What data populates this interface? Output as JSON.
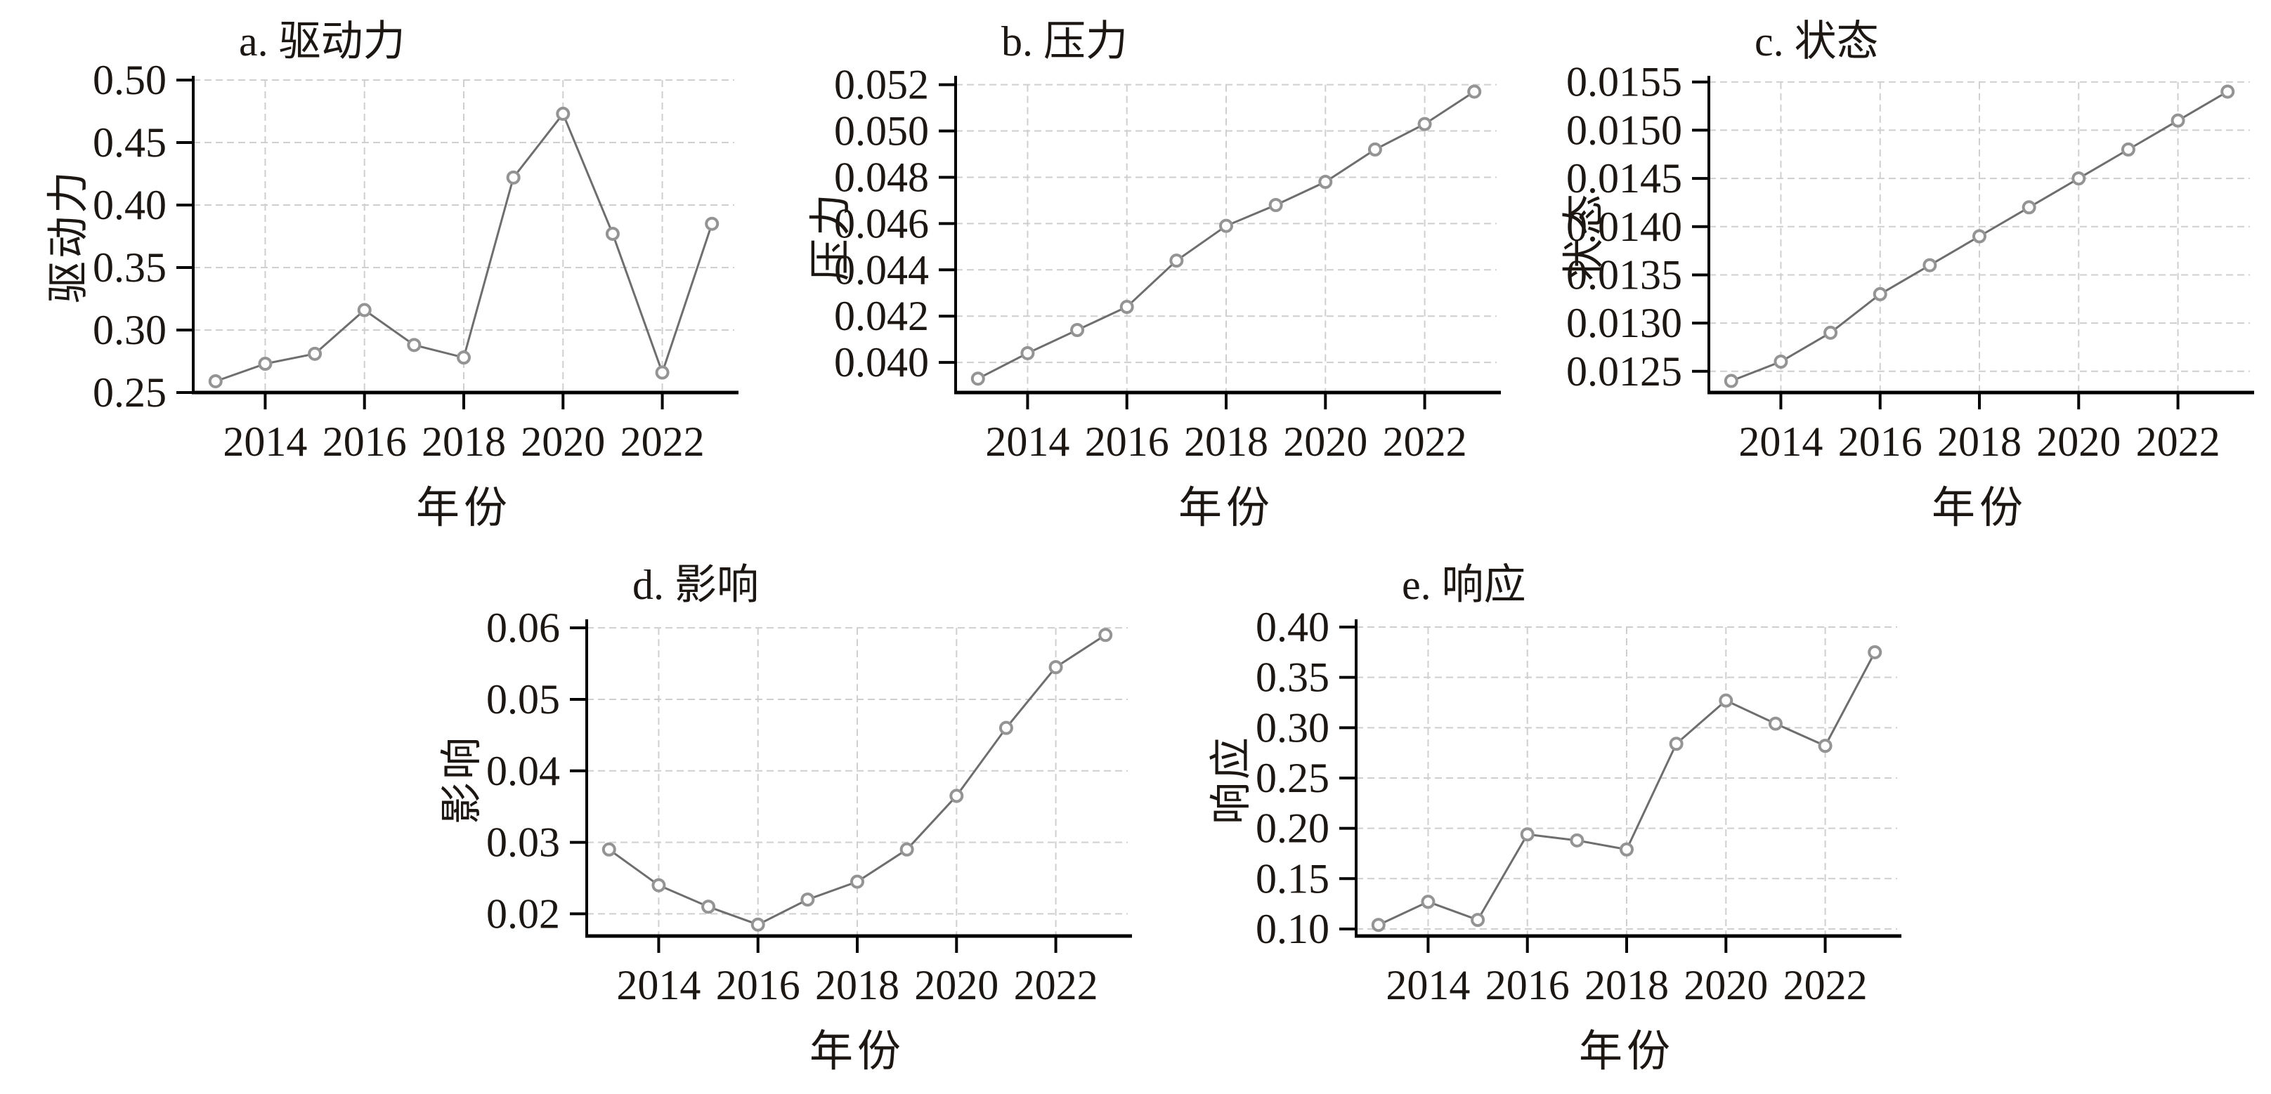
{
  "figure": {
    "xlabel": "年份",
    "x_tick_labels": [
      "2014",
      "2016",
      "2018",
      "2020",
      "2022"
    ]
  },
  "style": {
    "line_color": "#6e6e6e",
    "marker_stroke": "#949494",
    "marker_fill": "#ffffff",
    "grid_color": "#cfcfcf",
    "axis_color": "#000000",
    "text_color": "#1c1713"
  },
  "chart_data": [
    {
      "type": "line",
      "title": "a. 驱动力",
      "ylabel": "驱动力",
      "xlabel": "年份",
      "legend_position": "none",
      "grid": "dashed-both",
      "x": [
        2013,
        2014,
        2015,
        2016,
        2017,
        2018,
        2019,
        2020,
        2021,
        2022,
        2023
      ],
      "values": [
        0.259,
        0.273,
        0.281,
        0.316,
        0.288,
        0.278,
        0.422,
        0.473,
        0.377,
        0.266,
        0.385
      ],
      "x_ticks": [
        2014,
        2016,
        2018,
        2020,
        2022
      ],
      "x_tick_labels": [
        "2014",
        "2016",
        "2018",
        "2020",
        "2022"
      ],
      "xlim": [
        2012.55,
        2023.45
      ],
      "y_ticks": [
        0.25,
        0.3,
        0.35,
        0.4,
        0.45,
        0.5
      ],
      "y_tick_labels": [
        "0.25",
        "0.30",
        "0.35",
        "0.40",
        "0.45",
        "0.50"
      ],
      "ylim": [
        0.25,
        0.5
      ]
    },
    {
      "type": "line",
      "title": "b. 压力",
      "ylabel": "压力",
      "xlabel": "年份",
      "legend_position": "none",
      "grid": "dashed-both",
      "x": [
        2013,
        2014,
        2015,
        2016,
        2017,
        2018,
        2019,
        2020,
        2021,
        2022,
        2023
      ],
      "values": [
        0.0393,
        0.0404,
        0.0414,
        0.0424,
        0.0444,
        0.0459,
        0.0468,
        0.0478,
        0.0492,
        0.0503,
        0.0517
      ],
      "x_ticks": [
        2014,
        2016,
        2018,
        2020,
        2022
      ],
      "x_tick_labels": [
        "2014",
        "2016",
        "2018",
        "2020",
        "2022"
      ],
      "xlim": [
        2012.55,
        2023.45
      ],
      "y_ticks": [
        0.04,
        0.042,
        0.044,
        0.046,
        0.048,
        0.05,
        0.052
      ],
      "y_tick_labels": [
        "0.040",
        "0.042",
        "0.044",
        "0.046",
        "0.048",
        "0.050",
        "0.052"
      ],
      "ylim": [
        0.0387,
        0.0522
      ]
    },
    {
      "type": "line",
      "title": "c. 状态",
      "ylabel": "状态",
      "xlabel": "年份",
      "legend_position": "none",
      "grid": "dashed-both",
      "x": [
        2013,
        2014,
        2015,
        2016,
        2017,
        2018,
        2019,
        2020,
        2021,
        2022,
        2023
      ],
      "values": [
        0.0124,
        0.0126,
        0.0129,
        0.0133,
        0.0136,
        0.0139,
        0.0142,
        0.0145,
        0.0148,
        0.0151,
        0.0154
      ],
      "x_ticks": [
        2014,
        2016,
        2018,
        2020,
        2022
      ],
      "x_tick_labels": [
        "2014",
        "2016",
        "2018",
        "2020",
        "2022"
      ],
      "xlim": [
        2012.55,
        2023.45
      ],
      "y_ticks": [
        0.0125,
        0.013,
        0.0135,
        0.014,
        0.0145,
        0.015,
        0.0155
      ],
      "y_tick_labels": [
        "0.0125",
        "0.0130",
        "0.0135",
        "0.0140",
        "0.0145",
        "0.0150",
        "0.0155"
      ],
      "ylim": [
        0.01228,
        0.01552
      ]
    },
    {
      "type": "line",
      "title": "d. 影响",
      "ylabel": "影响",
      "xlabel": "年份",
      "legend_position": "none",
      "grid": "dashed-both",
      "x": [
        2013,
        2014,
        2015,
        2016,
        2017,
        2018,
        2019,
        2020,
        2021,
        2022,
        2023
      ],
      "values": [
        0.029,
        0.024,
        0.021,
        0.0185,
        0.022,
        0.0245,
        0.029,
        0.0365,
        0.046,
        0.0545,
        0.059
      ],
      "x_ticks": [
        2014,
        2016,
        2018,
        2020,
        2022
      ],
      "x_tick_labels": [
        "2014",
        "2016",
        "2018",
        "2020",
        "2022"
      ],
      "xlim": [
        2012.55,
        2023.45
      ],
      "y_ticks": [
        0.02,
        0.03,
        0.04,
        0.05,
        0.06
      ],
      "y_tick_labels": [
        "0.02",
        "0.03",
        "0.04",
        "0.05",
        "0.06"
      ],
      "ylim": [
        0.0169,
        0.0606
      ]
    },
    {
      "type": "line",
      "title": "e. 响应",
      "ylabel": "响应",
      "xlabel": "年份",
      "legend_position": "none",
      "grid": "dashed-both",
      "x": [
        2013,
        2014,
        2015,
        2016,
        2017,
        2018,
        2019,
        2020,
        2021,
        2022,
        2023
      ],
      "values": [
        0.104,
        0.127,
        0.109,
        0.194,
        0.188,
        0.179,
        0.284,
        0.327,
        0.304,
        0.282,
        0.375
      ],
      "x_ticks": [
        2014,
        2016,
        2018,
        2020,
        2022
      ],
      "x_tick_labels": [
        "2014",
        "2016",
        "2018",
        "2020",
        "2022"
      ],
      "xlim": [
        2012.55,
        2023.45
      ],
      "y_ticks": [
        0.1,
        0.15,
        0.2,
        0.25,
        0.3,
        0.35,
        0.4
      ],
      "y_tick_labels": [
        "0.10",
        "0.15",
        "0.20",
        "0.25",
        "0.30",
        "0.35",
        "0.40"
      ],
      "ylim": [
        0.093,
        0.4035
      ]
    }
  ]
}
